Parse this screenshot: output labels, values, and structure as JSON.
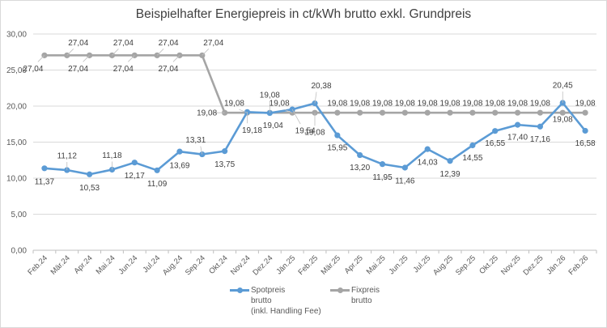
{
  "chart_data": {
    "type": "line",
    "title": "Beispielhafter Energiepreis in ct/kWh brutto exkl. Grundpreis",
    "xlabel": "",
    "ylabel": "",
    "ylim": [
      0,
      30
    ],
    "yticks": [
      "0,00",
      "5,00",
      "10,00",
      "15,00",
      "20,00",
      "25,00",
      "30,00"
    ],
    "grid": true,
    "legend_position": "bottom",
    "categories": [
      "Feb.24",
      "Mär.24",
      "Apr.24",
      "Mai.24",
      "Jun.24",
      "Jul.24",
      "Aug.24",
      "Sep.24",
      "Okt.24",
      "Nov.24",
      "Dez.24",
      "Jän.25",
      "Feb.25",
      "Mär.25",
      "Apr.25",
      "Mai.25",
      "Jun.25",
      "Jul.25",
      "Aug.25",
      "Sep.25",
      "Okt.25",
      "Nov.25",
      "Dez.25",
      "Jän.26",
      "Feb.26"
    ],
    "series": [
      {
        "name": "Spotpreis brutto (inkl. Handling Fee)",
        "color": "#5b9bd5",
        "values": [
          11.37,
          11.12,
          10.53,
          11.18,
          12.17,
          11.09,
          13.69,
          13.31,
          13.75,
          19.18,
          19.04,
          19.54,
          20.38,
          15.95,
          13.2,
          11.95,
          11.46,
          14.03,
          12.39,
          14.55,
          16.55,
          17.4,
          17.16,
          20.45,
          16.58
        ],
        "labels": [
          "11,37",
          "11,12",
          "10,53",
          "11,18",
          "12,17",
          "11,09",
          "13,69",
          "13,31",
          "13,75",
          "19,18",
          "19,04",
          "19,54",
          "20,38",
          "15,95",
          "13,20",
          "11,95",
          "11,46",
          "14,03",
          "12,39",
          "14,55",
          "16,55",
          "17,40",
          "17,16",
          "20,45",
          "16,58"
        ],
        "label_offsets": [
          [
            0,
            16
          ],
          [
            0,
            -18
          ],
          [
            0,
            16
          ],
          [
            0,
            -18
          ],
          [
            0,
            16
          ],
          [
            0,
            16
          ],
          [
            0,
            17
          ],
          [
            -8,
            -18
          ],
          [
            0,
            16
          ],
          [
            6,
            22
          ],
          [
            4,
            15
          ],
          [
            16,
            26
          ],
          [
            8,
            -22
          ],
          [
            0,
            15
          ],
          [
            0,
            15
          ],
          [
            0,
            16
          ],
          [
            0,
            16
          ],
          [
            0,
            16
          ],
          [
            0,
            16
          ],
          [
            0,
            15
          ],
          [
            0,
            15
          ],
          [
            0,
            15
          ],
          [
            0,
            15
          ],
          [
            0,
            -22
          ],
          [
            0,
            15
          ]
        ]
      },
      {
        "name": "Fixpreis brutto",
        "color": "#a5a5a5",
        "values": [
          27.04,
          27.04,
          27.04,
          27.04,
          27.04,
          27.04,
          27.04,
          27.04,
          19.08,
          19.08,
          19.08,
          19.08,
          19.08,
          19.08,
          19.08,
          19.08,
          19.08,
          19.08,
          19.08,
          19.08,
          19.08,
          19.08,
          19.08,
          19.08,
          19.08
        ],
        "labels": [
          "27,04",
          "27,04",
          "27,04",
          "27,04",
          "27,04",
          "27,04",
          "27,04",
          "27,04",
          "19,08",
          "19,08",
          "19,08",
          "19,08",
          "19,08",
          "19,08",
          "19,08",
          "19,08",
          "19,08",
          "19,08",
          "19,08",
          "19,08",
          "19,08",
          "19,08",
          "19,08",
          "19,08",
          "19,08"
        ],
        "label_offsets": [
          [
            -14,
            16
          ],
          [
            14,
            -16
          ],
          [
            -14,
            16
          ],
          [
            14,
            -16
          ],
          [
            -14,
            16
          ],
          [
            14,
            -16
          ],
          [
            -14,
            16
          ],
          [
            14,
            -16
          ],
          [
            -22,
            0
          ],
          [
            -16,
            -12
          ],
          [
            0,
            -22
          ],
          [
            -16,
            -12
          ],
          [
            0,
            24
          ],
          [
            0,
            -12
          ],
          [
            0,
            -12
          ],
          [
            0,
            -12
          ],
          [
            0,
            -12
          ],
          [
            0,
            -12
          ],
          [
            0,
            -12
          ],
          [
            0,
            -12
          ],
          [
            0,
            -12
          ],
          [
            0,
            -12
          ],
          [
            0,
            -12
          ],
          [
            0,
            8
          ],
          [
            0,
            -12
          ]
        ]
      }
    ]
  },
  "legend": {
    "items": [
      {
        "label": "Spotpreis\nbrutto\n(inkl. Handling Fee)",
        "color": "#5b9bd5"
      },
      {
        "label": "Fixpreis\nbrutto",
        "color": "#a5a5a5"
      }
    ]
  }
}
